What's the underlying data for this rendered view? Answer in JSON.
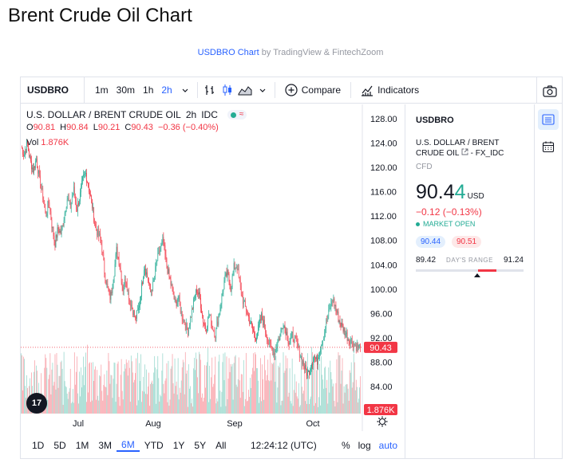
{
  "page": {
    "title": "Brent Crude Oil Chart",
    "credit_link": "USDBRO Chart",
    "credit_rest": " by TradingView & FintechZoom"
  },
  "toolbar": {
    "symbol": "USDBRO",
    "intervals": [
      "1m",
      "30m",
      "1h",
      "2h"
    ],
    "active_interval": "2h",
    "compare_label": "Compare",
    "indicators_label": "Indicators"
  },
  "legend": {
    "name": "U.S. DOLLAR / BRENT CRUDE OIL",
    "interval": "2h",
    "source": "IDC",
    "o_label": "O",
    "o_value": "90.81",
    "h_label": "H",
    "h_value": "90.84",
    "l_label": "L",
    "l_value": "90.21",
    "c_label": "C",
    "c_value": "90.43",
    "change": "−0.36 (−0.40%)",
    "vol_label": "Vol",
    "vol_value": "1.876K"
  },
  "chart_data": {
    "type": "candlestick",
    "x_labels": [
      "Jul",
      "Aug",
      "Sep",
      "Oct"
    ],
    "y_ticks": [
      "128.00",
      "124.00",
      "120.00",
      "116.00",
      "112.00",
      "108.00",
      "104.00",
      "100.00",
      "96.00",
      "92.00",
      "88.00",
      "84.00"
    ],
    "ylim": [
      82,
      129
    ],
    "last_price": "90.43",
    "last_volume": "1.876K",
    "colors": {
      "up": "#22ab94",
      "down": "#f23645"
    },
    "series": [
      {
        "name": "price",
        "values": [
          123.5,
          122.0,
          124.0,
          121.0,
          119.5,
          121.5,
          118.0,
          115.5,
          112.0,
          114.5,
          110.5,
          107.5,
          110.0,
          109.0,
          112.0,
          115.0,
          113.5,
          116.5,
          113.0,
          115.0,
          118.0,
          119.0,
          116.5,
          114.0,
          110.5,
          109.0,
          108.0,
          103.0,
          100.0,
          98.5,
          102.0,
          106.5,
          104.0,
          100.0,
          102.0,
          98.5,
          97.0,
          95.0,
          96.5,
          100.0,
          104.0,
          102.0,
          99.5,
          101.0,
          104.5,
          106.5,
          108.0,
          104.5,
          102.0,
          100.0,
          97.5,
          98.5,
          96.0,
          94.5,
          93.0,
          95.5,
          98.0,
          100.0,
          98.5,
          95.0,
          93.5,
          96.0,
          94.0,
          92.5,
          95.5,
          98.5,
          101.5,
          102.5,
          100.0,
          103.5,
          104.0,
          100.5,
          98.0,
          96.5,
          95.0,
          93.5,
          92.0,
          93.5,
          95.5,
          94.0,
          91.5,
          90.5,
          89.5,
          91.0,
          92.5,
          94.5,
          93.0,
          91.0,
          92.5,
          91.5,
          90.0,
          88.5,
          87.0,
          86.0,
          87.5,
          89.0,
          88.0,
          90.5,
          92.0,
          94.5,
          96.5,
          98.5,
          97.0,
          95.0,
          94.0,
          93.0,
          92.0,
          91.5,
          91.0,
          90.5,
          90.43
        ]
      }
    ]
  },
  "bottom_bar": {
    "ranges": [
      "1D",
      "5D",
      "1M",
      "3M",
      "6M",
      "YTD",
      "1Y",
      "5Y",
      "All"
    ],
    "active_range": "6M",
    "time": "12:24:12 (UTC)",
    "percent": "%",
    "log": "log",
    "auto": "auto"
  },
  "side_panel": {
    "symbol": "USDBRO",
    "desc_line1": "U.S. DOLLAR / BRENT",
    "desc_line2": "CRUDE OIL",
    "desc_exchange": " - FX_IDC",
    "type": "CFD",
    "price_main": "90.4",
    "price_last_digit": "4",
    "currency": "USD",
    "change": "−0.12 (−0.13%)",
    "market_status": "MARKET OPEN",
    "bid": "90.44",
    "ask": "90.51",
    "range_low": "89.42",
    "range_label": "DAY'S RANGE",
    "range_high": "91.24"
  },
  "icons": {
    "camera": "camera-icon",
    "compare": "plus-circle-icon",
    "indicators": "indicators-icon",
    "watchlist": "watchlist-icon",
    "calendar": "calendar-icon",
    "settings": "gear-icon",
    "logo": "tradingview-logo-icon"
  }
}
